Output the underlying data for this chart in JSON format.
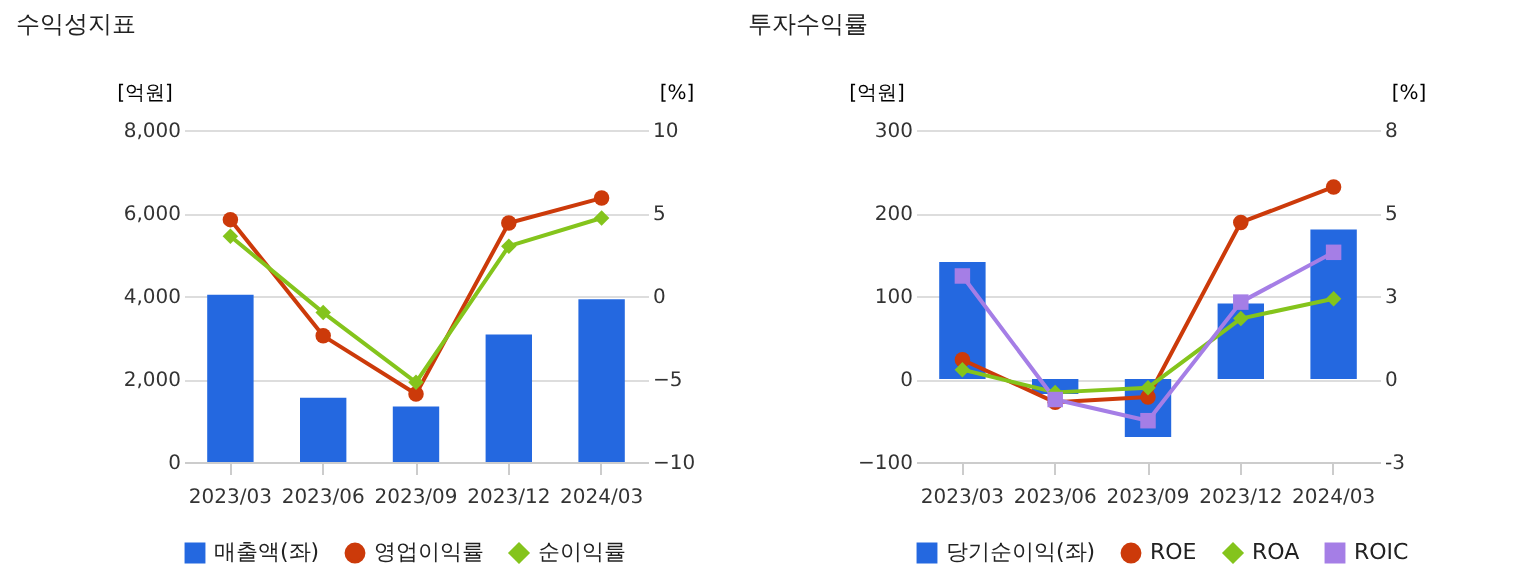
{
  "chart_data": [
    {
      "type": "bar",
      "title": "수익성지표",
      "ylabel": "[억원]",
      "y2label": "[%]",
      "categories": [
        "2023/03",
        "2023/06",
        "2023/09",
        "2023/12",
        "2024/03"
      ],
      "ylim": [
        0,
        8000
      ],
      "yticks": [
        0,
        {
          "value": 2000,
          "label": "2,000"
        },
        {
          "value": 4000,
          "label": "4,000"
        },
        {
          "value": 6000,
          "label": "6,000"
        },
        {
          "value": 8000,
          "label": "8,000"
        }
      ],
      "y2lim": [
        -10,
        10
      ],
      "y2ticks": [
        -10,
        -5,
        0,
        5,
        10
      ],
      "grid": "y",
      "legend": "bottom",
      "series": [
        {
          "name": "매출액(좌)",
          "color": "#2468e0",
          "values": [
            4030,
            1550,
            1340,
            3070,
            3920
          ]
        },
        {
          "name": "영업이익률",
          "type": "line",
          "axis": "y2",
          "marker": "circle",
          "color": "#cc3a0a",
          "values": [
            4.6,
            -2.4,
            -5.9,
            4.4,
            5.9
          ]
        },
        {
          "name": "순이익률",
          "type": "line",
          "axis": "y2",
          "marker": "diamond",
          "color": "#84c41c",
          "values": [
            3.6,
            -1.0,
            -5.2,
            3.0,
            4.7
          ]
        }
      ]
    },
    {
      "type": "bar",
      "title": "투자수익률",
      "ylabel": "[억원]",
      "y2label": "[%]",
      "categories": [
        "2023/03",
        "2023/06",
        "2023/09",
        "2023/12",
        "2024/03"
      ],
      "ylim": [
        -100,
        300
      ],
      "yticks": [
        -100,
        0,
        100,
        200,
        300
      ],
      "y2lim": [
        -2.667,
        8
      ],
      "y2ticks": [
        {
          "value": -2.667,
          "label": "-3"
        },
        0,
        {
          "value": 2.667,
          "label": "3"
        },
        {
          "value": 5.333,
          "label": "5"
        },
        8
      ],
      "grid": "y",
      "legend": "bottom",
      "series": [
        {
          "name": "당기순이익(좌)",
          "color": "#2468e0",
          "values": [
            141,
            -18,
            -70,
            91,
            180
          ]
        },
        {
          "name": "ROE",
          "type": "line",
          "axis": "y2",
          "marker": "circle",
          "color": "#cc3a0a",
          "values": [
            0.62,
            -0.75,
            -0.58,
            5.03,
            6.17
          ]
        },
        {
          "name": "ROA",
          "type": "line",
          "axis": "y2",
          "marker": "diamond",
          "color": "#84c41c",
          "values": [
            0.3,
            -0.43,
            -0.28,
            1.94,
            2.58
          ]
        },
        {
          "name": "ROIC",
          "type": "line",
          "axis": "y2",
          "marker": "square",
          "color": "#a57ee6",
          "values": [
            3.31,
            -0.66,
            -1.34,
            2.47,
            4.07
          ]
        }
      ]
    }
  ]
}
